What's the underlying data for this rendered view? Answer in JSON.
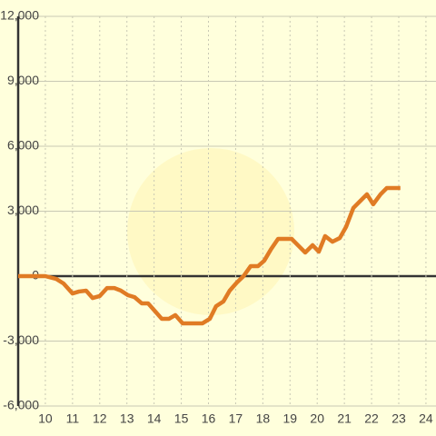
{
  "chart_data": {
    "type": "line",
    "x": [
      9.0,
      10.0,
      10.4,
      10.67,
      11.0,
      11.24,
      11.5,
      11.74,
      12.0,
      12.27,
      12.54,
      12.78,
      13.04,
      13.28,
      13.55,
      13.78,
      14.05,
      14.28,
      14.55,
      14.78,
      15.05,
      15.55,
      15.78,
      16.05,
      16.28,
      16.55,
      16.78,
      17.05,
      17.29,
      17.55,
      17.82,
      18.05,
      18.29,
      18.56,
      18.82,
      19.06,
      19.29,
      19.56,
      19.83,
      20.06,
      20.29,
      20.56,
      20.83,
      21.06,
      21.33,
      21.56,
      21.83,
      22.06,
      22.33,
      22.56,
      23.06
    ],
    "series": [
      {
        "color": "#e07b24",
        "values": [
          0,
          0,
          -130,
          -340,
          -800,
          -710,
          -670,
          -1010,
          -920,
          -550,
          -550,
          -670,
          -880,
          -970,
          -1260,
          -1260,
          -1640,
          -1970,
          -1970,
          -1800,
          -2180,
          -2180,
          -2180,
          -1970,
          -1390,
          -1170,
          -670,
          -290,
          0,
          460,
          460,
          710,
          1220,
          1720,
          1720,
          1720,
          1430,
          1090,
          1430,
          1130,
          1850,
          1590,
          1760,
          2270,
          3150,
          3440,
          3780,
          3320,
          3780,
          4070,
          4070
        ]
      }
    ],
    "xlim": [
      9,
      24.37
    ],
    "xticks": [
      10,
      11,
      12,
      13,
      14,
      15,
      16,
      17,
      18,
      19,
      20,
      21,
      22,
      23,
      24
    ],
    "ylim": [
      -6000,
      12000
    ],
    "yticks": [
      {
        "value": -6000,
        "label": "-6,000"
      },
      {
        "value": -3000,
        "label": "-3,000"
      },
      0,
      {
        "value": 3000,
        "label": "3,000"
      },
      {
        "value": 6000,
        "label": "6,000"
      },
      {
        "value": 9000,
        "label": "9,000"
      },
      {
        "value": 12000,
        "label": "12,000"
      }
    ],
    "grid": true
  }
}
